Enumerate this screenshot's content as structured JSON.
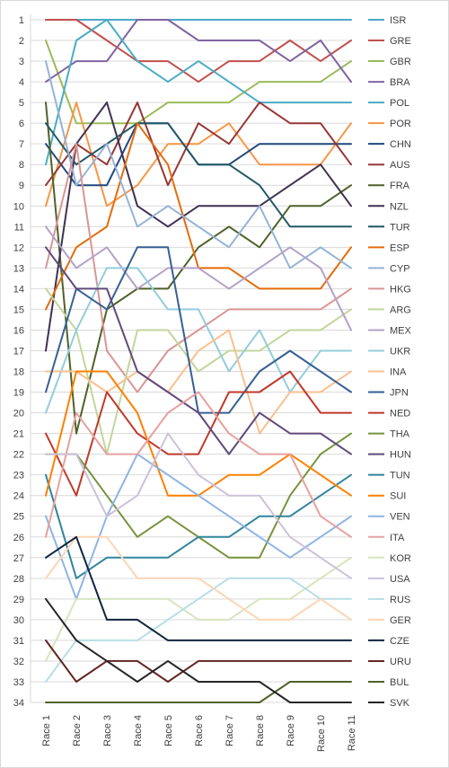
{
  "chart_data": {
    "type": "line",
    "title": "",
    "xlabel": "",
    "ylabel": "",
    "ylim": [
      1,
      34
    ],
    "y_inverted": true,
    "grid": "horizontal",
    "legend_position": "right",
    "categories": [
      "Race 1",
      "Race 2",
      "Race 3",
      "Race 4",
      "Race 5",
      "Race 6",
      "Race 7",
      "Race 8",
      "Race 9",
      "Race 10",
      "Race 11"
    ],
    "y_ticks": [
      1,
      2,
      3,
      4,
      5,
      6,
      7,
      8,
      9,
      10,
      11,
      12,
      13,
      14,
      15,
      16,
      17,
      18,
      19,
      20,
      21,
      22,
      23,
      24,
      25,
      26,
      27,
      28,
      29,
      30,
      31,
      32,
      33,
      34
    ],
    "series": [
      {
        "name": "ISR",
        "color": "#4aa9c9",
        "values": [
          1,
          1,
          1,
          1,
          1,
          1,
          1,
          1,
          1,
          1,
          1
        ]
      },
      {
        "name": "GRE",
        "color": "#c0504d",
        "values": [
          1,
          1,
          2,
          3,
          3,
          4,
          3,
          3,
          2,
          3,
          2
        ]
      },
      {
        "name": "GBR",
        "color": "#9bbb59",
        "values": [
          2,
          6,
          6,
          6,
          5,
          5,
          5,
          4,
          4,
          4,
          3
        ]
      },
      {
        "name": "BRA",
        "color": "#8064a2",
        "values": [
          4,
          3,
          3,
          1,
          1,
          2,
          2,
          2,
          3,
          2,
          4
        ]
      },
      {
        "name": "POL",
        "color": "#4bacc6",
        "values": [
          8,
          2,
          1,
          3,
          4,
          3,
          4,
          5,
          5,
          5,
          5
        ]
      },
      {
        "name": "POR",
        "color": "#f79646",
        "values": [
          10,
          5,
          10,
          9,
          7,
          7,
          6,
          8,
          8,
          8,
          6
        ]
      },
      {
        "name": "CHN",
        "color": "#1f497d",
        "values": [
          7,
          9,
          9,
          6,
          6,
          8,
          8,
          7,
          7,
          7,
          7
        ]
      },
      {
        "name": "AUS",
        "color": "#953735",
        "values": [
          9,
          7,
          8,
          5,
          9,
          6,
          7,
          5,
          6,
          6,
          8
        ]
      },
      {
        "name": "FRA",
        "color": "#4f6228",
        "values": [
          5,
          21,
          15,
          14,
          14,
          12,
          11,
          12,
          10,
          10,
          9
        ]
      },
      {
        "name": "NZL",
        "color": "#3f3151",
        "values": [
          17,
          7,
          5,
          10,
          11,
          10,
          10,
          10,
          9,
          8,
          10
        ]
      },
      {
        "name": "TUR",
        "color": "#215968",
        "values": [
          6,
          8,
          7,
          6,
          6,
          8,
          8,
          9,
          11,
          11,
          11
        ]
      },
      {
        "name": "ESP",
        "color": "#e46c0a",
        "values": [
          15,
          12,
          11,
          6,
          8,
          13,
          13,
          14,
          14,
          14,
          12
        ]
      },
      {
        "name": "CYP",
        "color": "#95b3d7",
        "values": [
          3,
          9,
          7,
          11,
          10,
          11,
          12,
          10,
          13,
          12,
          13
        ]
      },
      {
        "name": "HKG",
        "color": "#d99694",
        "values": [
          13,
          7,
          17,
          19,
          17,
          16,
          15,
          15,
          15,
          15,
          14
        ]
      },
      {
        "name": "ARG",
        "color": "#c3d69b",
        "values": [
          14,
          16,
          22,
          16,
          16,
          18,
          17,
          17,
          16,
          16,
          15
        ]
      },
      {
        "name": "MEX",
        "color": "#b3a2c7",
        "values": [
          11,
          13,
          12,
          14,
          13,
          13,
          14,
          13,
          12,
          13,
          16
        ]
      },
      {
        "name": "UKR",
        "color": "#93cddd",
        "values": [
          20,
          16,
          13,
          13,
          15,
          15,
          18,
          16,
          19,
          17,
          17
        ]
      },
      {
        "name": "INA",
        "color": "#fac090",
        "values": [
          18,
          18,
          19,
          18,
          19,
          17,
          16,
          21,
          19,
          19,
          18
        ]
      },
      {
        "name": "JPN",
        "color": "#376092",
        "values": [
          19,
          14,
          15,
          12,
          12,
          20,
          20,
          18,
          17,
          18,
          19
        ]
      },
      {
        "name": "NED",
        "color": "#c0392b",
        "values": [
          21,
          24,
          19,
          21,
          22,
          22,
          19,
          19,
          18,
          20,
          20
        ]
      },
      {
        "name": "THA",
        "color": "#77933c",
        "values": [
          22,
          22,
          24,
          26,
          25,
          26,
          27,
          27,
          24,
          22,
          21
        ]
      },
      {
        "name": "HUN",
        "color": "#604a7b",
        "values": [
          12,
          14,
          14,
          18,
          19,
          20,
          22,
          20,
          21,
          21,
          22
        ]
      },
      {
        "name": "TUN",
        "color": "#31859c",
        "values": [
          23,
          28,
          27,
          27,
          27,
          26,
          26,
          25,
          25,
          24,
          23
        ]
      },
      {
        "name": "SUI",
        "color": "#ff8000",
        "values": [
          24,
          18,
          18,
          20,
          24,
          24,
          23,
          23,
          22,
          23,
          24
        ]
      },
      {
        "name": "VEN",
        "color": "#8eb4e3",
        "values": [
          25,
          29,
          25,
          22,
          23,
          24,
          25,
          26,
          27,
          26,
          25
        ]
      },
      {
        "name": "ITA",
        "color": "#e6a19f",
        "values": [
          26,
          20,
          22,
          22,
          20,
          19,
          21,
          22,
          22,
          25,
          26
        ]
      },
      {
        "name": "KOR",
        "color": "#d7e4bd",
        "values": [
          32,
          29,
          29,
          29,
          29,
          30,
          30,
          29,
          29,
          28,
          27
        ]
      },
      {
        "name": "USA",
        "color": "#ccc1da",
        "values": [
          22,
          22,
          25,
          24,
          21,
          23,
          24,
          24,
          26,
          27,
          28
        ]
      },
      {
        "name": "RUS",
        "color": "#b7dee8",
        "values": [
          33,
          31,
          31,
          31,
          30,
          29,
          28,
          28,
          28,
          29,
          29
        ]
      },
      {
        "name": "GER",
        "color": "#fcd5b4",
        "values": [
          28,
          26,
          26,
          28,
          28,
          28,
          29,
          30,
          30,
          29,
          30
        ]
      },
      {
        "name": "CZE",
        "color": "#10253f",
        "values": [
          27,
          26,
          30,
          30,
          31,
          31,
          31,
          31,
          31,
          31,
          31
        ]
      },
      {
        "name": "URU",
        "color": "#632523",
        "values": [
          31,
          33,
          32,
          32,
          33,
          32,
          32,
          32,
          32,
          32,
          32
        ]
      },
      {
        "name": "BUL",
        "color": "#4f6228",
        "values": [
          34,
          34,
          34,
          34,
          34,
          34,
          34,
          34,
          33,
          33,
          33
        ]
      },
      {
        "name": "SVK",
        "color": "#262626",
        "values": [
          29,
          31,
          32,
          33,
          32,
          33,
          33,
          33,
          34,
          34,
          34
        ]
      }
    ]
  }
}
